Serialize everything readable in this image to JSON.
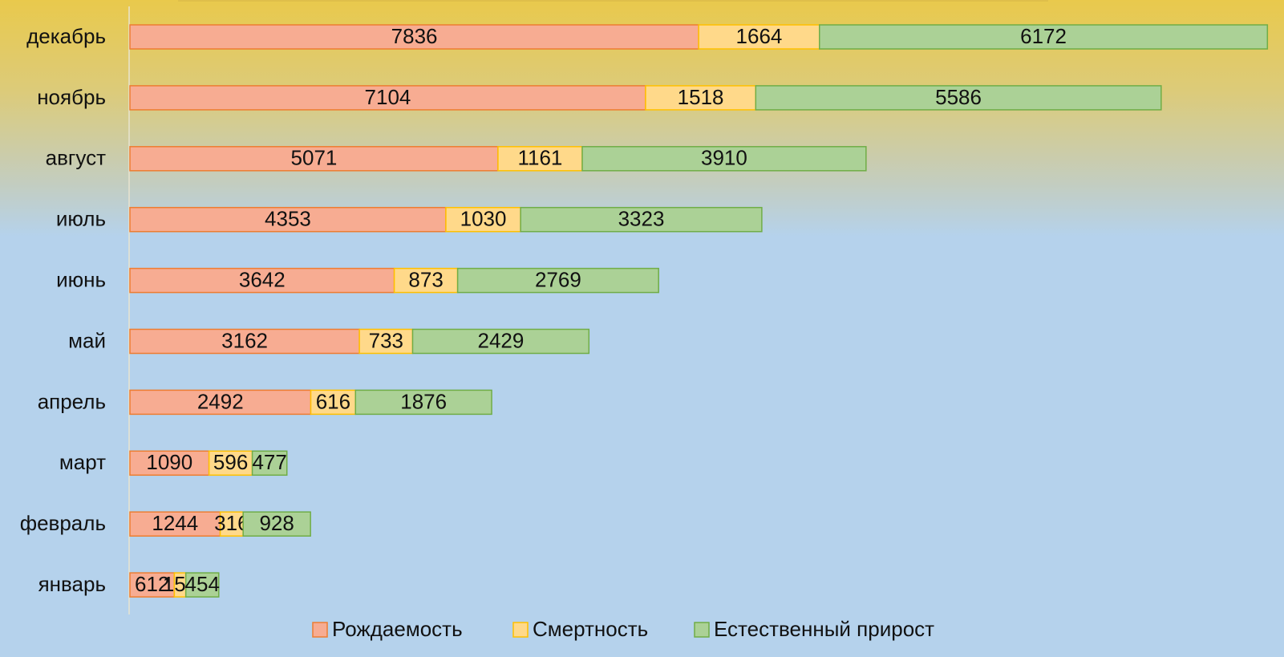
{
  "chart_data": {
    "type": "stacked_bar_horizontal",
    "categories": [
      "декабрь",
      "ноябрь",
      "август",
      "июль",
      "июнь",
      "май",
      "апрель",
      "март",
      "февраль",
      "январь"
    ],
    "series": [
      {
        "name": "Рождаемость",
        "color": "#f7ac92",
        "values": [
          7836,
          7104,
          5071,
          4353,
          3642,
          3162,
          2492,
          1090,
          1244,
          612
        ]
      },
      {
        "name": "Смертность",
        "color": "#ffd98a",
        "values": [
          1664,
          1518,
          1161,
          1030,
          873,
          733,
          616,
          596,
          316,
          158
        ]
      },
      {
        "name": "Естественный прирост",
        "color": "#abd196",
        "values": [
          6172,
          5586,
          3910,
          3323,
          2769,
          2429,
          1876,
          477,
          928,
          454
        ]
      }
    ],
    "legend": "bottom"
  }
}
